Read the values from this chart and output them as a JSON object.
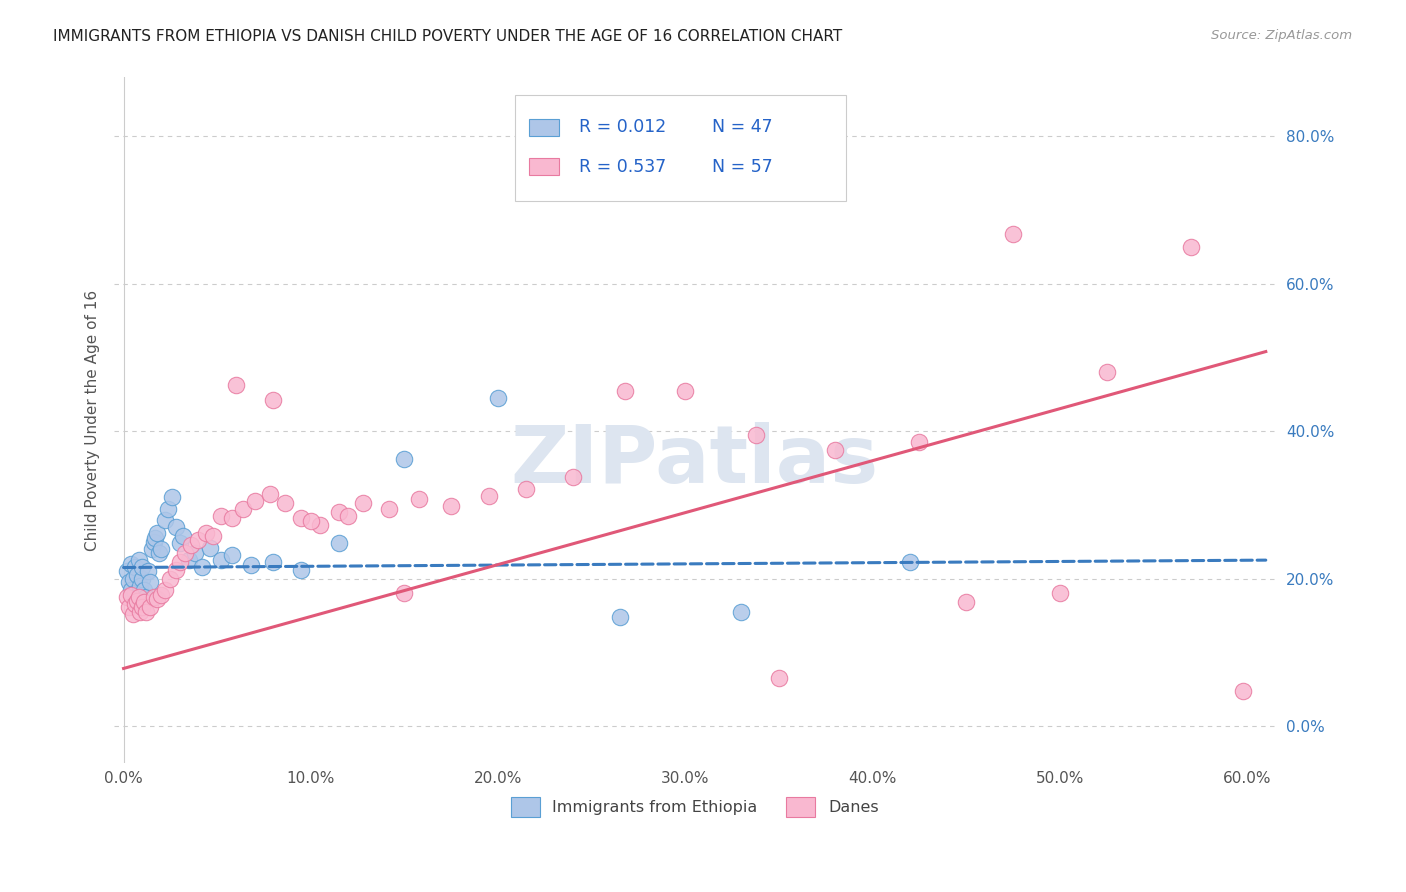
{
  "title": "IMMIGRANTS FROM ETHIOPIA VS DANISH CHILD POVERTY UNDER THE AGE OF 16 CORRELATION CHART",
  "source": "Source: ZipAtlas.com",
  "ylabel": "Child Poverty Under the Age of 16",
  "R1": 0.012,
  "N1": 47,
  "R2": 0.537,
  "N2": 57,
  "color1": "#aec6e8",
  "color2": "#f9b8d0",
  "edge1_color": "#5a9fd4",
  "edge2_color": "#e87aa0",
  "trend1_color": "#3a7bbf",
  "trend2_color": "#e05878",
  "legend_R_color": "#2563c8",
  "legend_N_color": "#2563c8",
  "xlim": [
    -0.005,
    0.615
  ],
  "ylim": [
    -0.05,
    0.88
  ],
  "xticks": [
    0.0,
    0.1,
    0.2,
    0.3,
    0.4,
    0.5,
    0.6
  ],
  "yticks": [
    0.0,
    0.2,
    0.4,
    0.6,
    0.8
  ],
  "xtick_labels": [
    "0.0%",
    "10.0%",
    "20.0%",
    "30.0%",
    "40.0%",
    "50.0%",
    "60.0%"
  ],
  "ytick_labels": [
    "0.0%",
    "20.0%",
    "40.0%",
    "60.0%",
    "80.0%"
  ],
  "background_color": "#ffffff",
  "grid_color": "#cccccc",
  "watermark_color": "#dde5f0",
  "legend_label1": "Immigrants from Ethiopia",
  "legend_label2": "Danes",
  "scatter1_x": [
    0.002,
    0.003,
    0.004,
    0.004,
    0.005,
    0.005,
    0.006,
    0.006,
    0.007,
    0.007,
    0.008,
    0.008,
    0.009,
    0.009,
    0.01,
    0.01,
    0.011,
    0.012,
    0.013,
    0.014,
    0.015,
    0.016,
    0.017,
    0.018,
    0.019,
    0.02,
    0.022,
    0.024,
    0.026,
    0.028,
    0.03,
    0.032,
    0.035,
    0.038,
    0.042,
    0.046,
    0.052,
    0.058,
    0.068,
    0.08,
    0.095,
    0.115,
    0.15,
    0.2,
    0.265,
    0.33,
    0.42
  ],
  "scatter1_y": [
    0.21,
    0.195,
    0.185,
    0.22,
    0.175,
    0.2,
    0.215,
    0.18,
    0.165,
    0.205,
    0.17,
    0.225,
    0.18,
    0.19,
    0.2,
    0.215,
    0.185,
    0.175,
    0.21,
    0.195,
    0.24,
    0.25,
    0.255,
    0.262,
    0.235,
    0.24,
    0.28,
    0.295,
    0.31,
    0.27,
    0.248,
    0.258,
    0.225,
    0.235,
    0.215,
    0.242,
    0.225,
    0.232,
    0.218,
    0.222,
    0.212,
    0.248,
    0.362,
    0.445,
    0.148,
    0.155,
    0.222
  ],
  "scatter2_x": [
    0.002,
    0.003,
    0.004,
    0.005,
    0.006,
    0.007,
    0.008,
    0.009,
    0.01,
    0.011,
    0.012,
    0.014,
    0.016,
    0.018,
    0.02,
    0.022,
    0.025,
    0.028,
    0.03,
    0.033,
    0.036,
    0.04,
    0.044,
    0.048,
    0.052,
    0.058,
    0.064,
    0.07,
    0.078,
    0.086,
    0.095,
    0.105,
    0.115,
    0.128,
    0.142,
    0.158,
    0.175,
    0.195,
    0.215,
    0.24,
    0.268,
    0.3,
    0.338,
    0.38,
    0.425,
    0.475,
    0.525,
    0.57,
    0.598,
    0.06,
    0.08,
    0.1,
    0.12,
    0.15,
    0.35,
    0.45,
    0.5
  ],
  "scatter2_y": [
    0.175,
    0.162,
    0.178,
    0.152,
    0.165,
    0.17,
    0.175,
    0.155,
    0.162,
    0.168,
    0.155,
    0.162,
    0.175,
    0.172,
    0.178,
    0.185,
    0.2,
    0.212,
    0.222,
    0.235,
    0.245,
    0.252,
    0.262,
    0.258,
    0.285,
    0.282,
    0.295,
    0.305,
    0.315,
    0.302,
    0.282,
    0.272,
    0.29,
    0.302,
    0.295,
    0.308,
    0.298,
    0.312,
    0.322,
    0.338,
    0.455,
    0.455,
    0.395,
    0.375,
    0.385,
    0.668,
    0.48,
    0.65,
    0.048,
    0.462,
    0.442,
    0.278,
    0.285,
    0.18,
    0.065,
    0.168,
    0.18
  ],
  "trend1_y_start": 0.215,
  "trend1_y_end": 0.225,
  "trend2_y_start": 0.078,
  "trend2_y_end": 0.508
}
